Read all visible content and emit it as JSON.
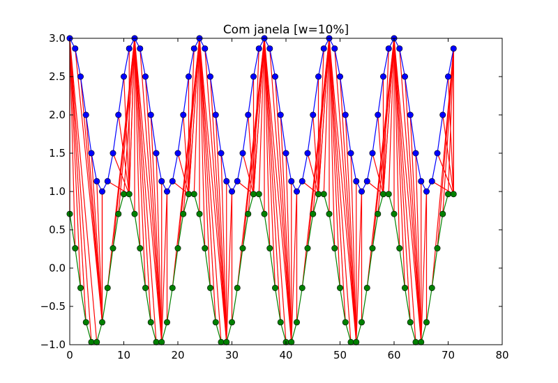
{
  "chart_data": {
    "type": "line",
    "title": "Com janela [w=10%]",
    "xlabel": "",
    "ylabel": "",
    "xlim": [
      0,
      80
    ],
    "ylim": [
      -1.0,
      3.0
    ],
    "grid": false,
    "x_ticks": [
      "0",
      "10",
      "20",
      "30",
      "40",
      "50",
      "60",
      "70",
      "80"
    ],
    "y_ticks": [
      "−1.0",
      "−0.5",
      "0.0",
      "0.5",
      "1.0",
      "1.5",
      "2.0",
      "2.5",
      "3.0"
    ],
    "series": [
      {
        "color": "#0000ff",
        "marker": "circle",
        "values": [
          3.0,
          2.866,
          2.5,
          2.0,
          1.5,
          1.134,
          1.0,
          1.134,
          1.5,
          2.0,
          2.5,
          2.866,
          3.0,
          2.866,
          2.5,
          2.0,
          1.5,
          1.134,
          1.0,
          1.134,
          1.5,
          2.0,
          2.5,
          2.866,
          3.0,
          2.866,
          2.5,
          2.0,
          1.5,
          1.134,
          1.0,
          1.134,
          1.5,
          2.0,
          2.5,
          2.866,
          3.0,
          2.866,
          2.5,
          2.0,
          1.5,
          1.134,
          1.0,
          1.134,
          1.5,
          2.0,
          2.5,
          2.866,
          3.0,
          2.866,
          2.5,
          2.0,
          1.5,
          1.134,
          1.0,
          1.134,
          1.5,
          2.0,
          2.5,
          2.866,
          3.0,
          2.866,
          2.5,
          2.0,
          1.5,
          1.134,
          1.0,
          1.134,
          1.5,
          2.0,
          2.5,
          2.866
        ]
      },
      {
        "color": "#008000",
        "marker": "circle",
        "values": [
          0.707,
          0.259,
          -0.259,
          -0.707,
          -0.966,
          -0.966,
          -0.707,
          -0.259,
          0.259,
          0.707,
          0.966,
          0.966,
          0.707,
          0.259,
          -0.259,
          -0.707,
          -0.966,
          -0.966,
          -0.707,
          -0.259,
          0.259,
          0.707,
          0.966,
          0.966,
          0.707,
          0.259,
          -0.259,
          -0.707,
          -0.966,
          -0.966,
          -0.707,
          -0.259,
          0.259,
          0.707,
          0.966,
          0.966,
          0.707,
          0.259,
          -0.259,
          -0.707,
          -0.966,
          -0.966,
          -0.707,
          -0.259,
          0.259,
          0.707,
          0.966,
          0.966,
          0.707,
          0.259,
          -0.259,
          -0.707,
          -0.966,
          -0.966,
          -0.707,
          -0.259,
          0.259,
          0.707,
          0.966,
          0.966,
          0.707,
          0.259,
          -0.259,
          -0.707,
          -0.966,
          -0.966,
          -0.707,
          -0.259,
          0.259,
          0.707,
          0.966,
          0.966
        ]
      }
    ],
    "connectors": {
      "color": "#ff0000",
      "description_pairs_from": "each index i connects blue(i) to green(j) where j is the nearest local extreme of the green cycle within the window",
      "green_anchor_x": [
        0,
        6,
        6,
        6,
        6,
        6,
        6,
        11,
        11,
        11,
        11,
        11,
        11,
        17,
        17,
        17,
        17,
        17,
        17,
        22,
        22,
        22,
        22,
        22,
        22,
        29,
        29,
        29,
        29,
        29,
        29,
        34,
        34,
        34,
        34,
        34,
        34,
        41,
        41,
        41,
        41,
        41,
        41,
        46,
        46,
        46,
        46,
        46,
        46,
        53,
        53,
        53,
        53,
        53,
        53,
        58,
        58,
        58,
        58,
        58,
        58,
        65,
        65,
        65,
        65,
        65,
        65,
        71,
        71,
        71,
        71,
        71
      ],
      "blue_anchor_x": [
        0,
        0,
        0,
        0,
        0,
        0,
        6,
        12,
        12,
        12,
        12,
        12,
        12,
        12,
        12,
        12,
        12,
        12,
        18,
        24,
        24,
        24,
        24,
        24,
        24,
        24,
        24,
        24,
        24,
        24,
        30,
        36,
        36,
        36,
        36,
        36,
        36,
        36,
        36,
        36,
        36,
        36,
        42,
        48,
        48,
        48,
        48,
        48,
        48,
        48,
        48,
        48,
        48,
        48,
        54,
        60,
        60,
        60,
        60,
        60,
        60,
        60,
        60,
        60,
        60,
        60,
        66,
        71,
        71,
        71,
        71,
        71
      ]
    }
  }
}
